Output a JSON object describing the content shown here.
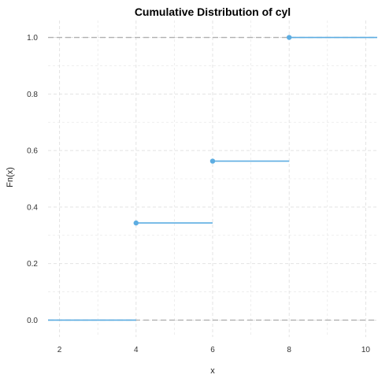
{
  "chart_data": {
    "type": "line",
    "title": "Cumulative Distribution of cyl",
    "xlabel": "x",
    "ylabel": "Fn(x)",
    "xlim": [
      1.7,
      10.3
    ],
    "ylim": [
      -0.06,
      1.06
    ],
    "x_ticks": [
      2,
      4,
      6,
      8,
      10
    ],
    "y_ticks": [
      0.0,
      0.2,
      0.4,
      0.6,
      0.8,
      1.0
    ],
    "x_tick_labels": [
      "2",
      "4",
      "6",
      "8",
      "10"
    ],
    "y_tick_labels": [
      "0.0",
      "0.2",
      "0.4",
      "0.6",
      "0.8",
      "1.0"
    ],
    "grid": true,
    "reference_lines": [
      0,
      1
    ],
    "series": [
      {
        "steps": [
          {
            "x_start": 1.7,
            "x_end": 4,
            "y": 0.0,
            "point": false
          },
          {
            "x_start": 4,
            "x_end": 6,
            "y": 0.34375,
            "point": true
          },
          {
            "x_start": 6,
            "x_end": 8,
            "y": 0.5625,
            "point": true
          },
          {
            "x_start": 8,
            "x_end": 10.3,
            "y": 1.0,
            "point": true
          }
        ]
      }
    ],
    "colors": {
      "series": "#5DADE2",
      "reference": "#b0b0b0",
      "grid": "#e3e3e3"
    }
  }
}
